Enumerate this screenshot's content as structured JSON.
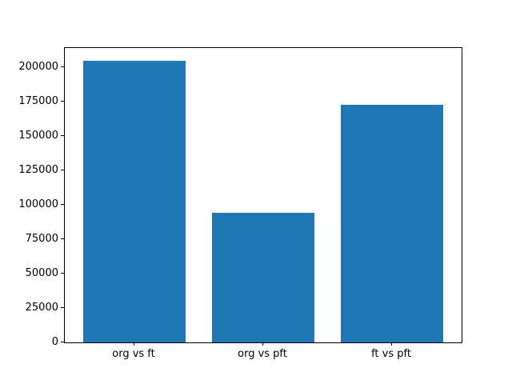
{
  "figure": {
    "background": "#ffffff",
    "axis_color": "#000000"
  },
  "chart_data": {
    "type": "bar",
    "categories": [
      "org vs ft",
      "org vs pft",
      "ft vs pft"
    ],
    "values": [
      204800,
      94200,
      172700
    ],
    "title": "",
    "xlabel": "",
    "ylabel": "",
    "ylim": [
      0,
      213800
    ],
    "xlim": [
      -0.54,
      2.54
    ],
    "bar_width": 0.8,
    "yticks": [
      0,
      25000,
      50000,
      75000,
      100000,
      125000,
      150000,
      175000,
      200000
    ],
    "ytick_labels": [
      "0",
      "25000",
      "50000",
      "75000",
      "100000",
      "125000",
      "150000",
      "175000",
      "200000"
    ],
    "bar_color": "#1f77b4",
    "grid": false,
    "legend": null
  }
}
